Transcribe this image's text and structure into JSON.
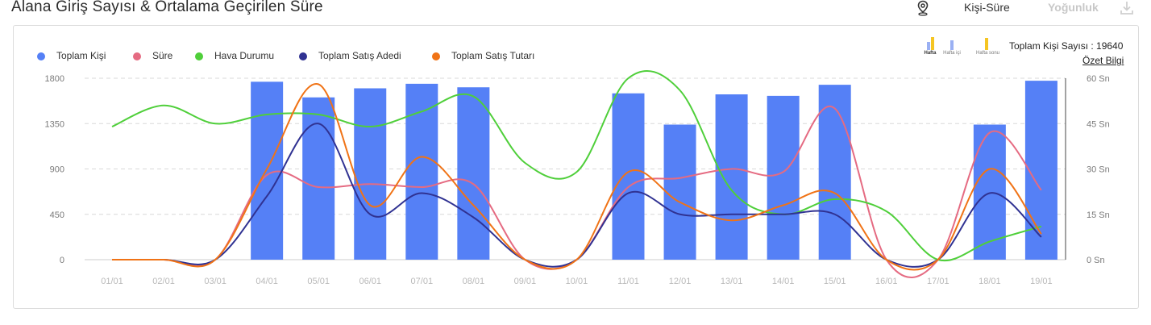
{
  "header": {
    "title": "Alana Giriş Sayısı & Ortalama Geçirilen Süre",
    "mode_active": "Kişi-Süre",
    "mode_inactive": "Yoğunluk",
    "icons": [
      "location-pin-icon",
      "download-icon"
    ]
  },
  "panel": {
    "periods": [
      "Hafta",
      "Hafta içi",
      "Hafta sonu"
    ],
    "total_text": "Toplam Kişi Sayısı : 19640",
    "summary_link": "Özet Bilgi"
  },
  "colors": {
    "bars": "#5580f6",
    "sure": "#e56b82",
    "hava": "#4fcf3a",
    "satis_adedi": "#303292",
    "satis_tutari": "#f07316",
    "period_yellow": "#f5c523",
    "period_blue": "#9ab0f3"
  },
  "chart_data": {
    "type": "bar",
    "categories": [
      "01/01",
      "02/01",
      "03/01",
      "04/01",
      "05/01",
      "06/01",
      "07/01",
      "08/01",
      "09/01",
      "10/01",
      "11/01",
      "12/01",
      "13/01",
      "14/01",
      "15/01",
      "16/01",
      "17/01",
      "18/01",
      "19/01"
    ],
    "legend": [
      "Toplam Kişi",
      "Süre",
      "Hava Durumu",
      "Toplam Satış Adedi",
      "Toplam Satış Tutarı"
    ],
    "legend_position": "top-left",
    "grid": true,
    "y_left": {
      "ticks": [
        "0",
        "450",
        "900",
        "1350",
        "1800"
      ],
      "ylim": [
        0,
        1800
      ]
    },
    "y_right": {
      "ticks": [
        "0 Sn",
        "15 Sn",
        "30 Sn",
        "45 Sn",
        "60 Sn"
      ],
      "ylim": [
        0,
        60
      ]
    },
    "series": [
      {
        "name": "Toplam Kişi",
        "type": "bar",
        "axis": "left",
        "values": [
          0,
          0,
          0,
          1765,
          1610,
          1700,
          1745,
          1710,
          0,
          0,
          1650,
          1340,
          1640,
          1625,
          1735,
          0,
          0,
          1340,
          1775
        ]
      },
      {
        "name": "Süre",
        "type": "line",
        "axis": "right",
        "values": [
          0,
          0,
          0,
          28,
          24,
          25,
          24,
          25,
          0,
          0,
          24,
          27,
          30,
          29,
          50,
          0,
          0,
          42,
          23
        ]
      },
      {
        "name": "Hava Durumu",
        "type": "line",
        "axis": "right",
        "values": [
          44,
          51,
          45,
          48,
          48,
          44,
          49,
          54,
          32,
          29,
          60,
          56,
          23,
          15,
          20,
          16,
          0,
          6,
          11
        ]
      },
      {
        "name": "Toplam Satış Adedi",
        "type": "line",
        "axis": "right",
        "values": [
          0,
          0,
          0,
          21,
          45,
          15,
          22,
          14,
          0,
          0,
          22,
          15,
          15,
          15,
          15,
          0,
          0,
          22,
          7.5
        ]
      },
      {
        "name": "Toplam Satış Tutarı",
        "type": "line",
        "axis": "right",
        "values": [
          0,
          0,
          0,
          30,
          58,
          18,
          34,
          18,
          0,
          0,
          29,
          19,
          13,
          18,
          22,
          0,
          0,
          30,
          8.5
        ]
      }
    ]
  }
}
